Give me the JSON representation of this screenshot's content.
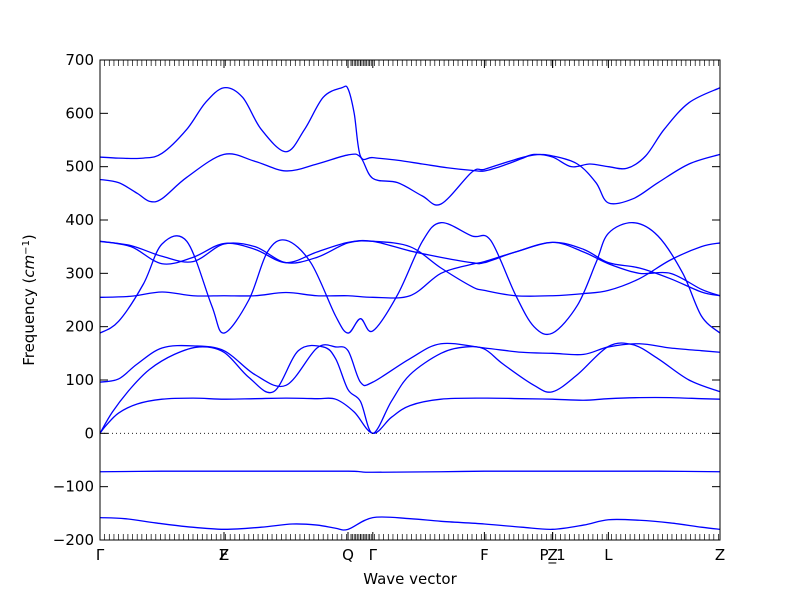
{
  "chart_data": {
    "type": "line",
    "title": "",
    "xlabel": "Wave vector",
    "ylabel": "Frequency (",
    "ylabel_math": "cm",
    "ylabel_exp": "−1",
    "ylabel_close": ")",
    "ylim": [
      -200,
      700
    ],
    "yticks": [
      -200,
      -100,
      0,
      100,
      200,
      300,
      400,
      500,
      600,
      700
    ],
    "ytick_labels": [
      "−200",
      "−100",
      "0",
      "100",
      "200",
      "300",
      "400",
      "500",
      "600",
      "700"
    ],
    "xlim": [
      0,
      1
    ],
    "special_points": [
      {
        "label": "Γ",
        "x": 0.0
      },
      {
        "label": "Z",
        "x": 0.2
      },
      {
        "label": "F",
        "x": 0.2
      },
      {
        "label": "Q",
        "x": 0.4
      },
      {
        "label": "Γ",
        "x": 0.44
      },
      {
        "label": "F",
        "x": 0.62
      },
      {
        "label": "P_1",
        "x": 0.73
      },
      {
        "label": "Z",
        "x": 0.73
      },
      {
        "label": "L",
        "x": 0.82
      },
      {
        "label": "Z",
        "x": 1.0
      }
    ],
    "zero_line": 0,
    "line_color": "#0000ff",
    "series": [
      {
        "x": [
          0,
          0.04,
          0.09,
          0.14,
          0.2,
          0.26,
          0.31,
          0.35,
          0.38,
          0.4,
          0.44,
          0.5,
          0.55,
          0.62,
          0.68,
          0.73,
          0.78,
          0.82,
          0.87,
          0.92,
          0.97,
          1
        ],
        "values": [
          -158,
          -160,
          -168,
          -175,
          -180,
          -176,
          -170,
          -172,
          -178,
          -180,
          -158,
          -160,
          -165,
          -170,
          -176,
          -180,
          -172,
          -162,
          -163,
          -168,
          -176,
          -180
        ]
      },
      {
        "x": [
          0,
          0.1,
          0.2,
          0.3,
          0.4,
          0.42,
          0.44,
          0.55,
          0.62,
          0.73,
          0.82,
          0.9,
          1
        ],
        "values": [
          -72,
          -71,
          -71,
          -71,
          -71,
          -72,
          -73,
          -72,
          -71,
          -71,
          -71,
          -71,
          -72
        ]
      },
      {
        "x": [
          0,
          0.01,
          0.03,
          0.06,
          0.1,
          0.15,
          0.2,
          0.25,
          0.3,
          0.35,
          0.38,
          0.41,
          0.44,
          0.47,
          0.5,
          0.55,
          0.62,
          0.68,
          0.73,
          0.78,
          0.82,
          0.87,
          0.92,
          0.97,
          1
        ],
        "values": [
          0,
          15,
          38,
          55,
          64,
          66,
          64,
          65,
          66,
          65,
          64,
          40,
          0,
          30,
          52,
          64,
          66,
          65,
          64,
          62,
          65,
          67,
          67,
          65,
          64
        ]
      },
      {
        "x": [
          0,
          0.02,
          0.05,
          0.08,
          0.12,
          0.16,
          0.2,
          0.24,
          0.28,
          0.32,
          0.36,
          0.38,
          0.4,
          0.42,
          0.44,
          0.47,
          0.5,
          0.55,
          0.59,
          0.62,
          0.65,
          0.7,
          0.73,
          0.77,
          0.82,
          0.86,
          0.9,
          0.95,
          1
        ],
        "values": [
          0,
          40,
          85,
          120,
          148,
          162,
          152,
          105,
          78,
          155,
          162,
          140,
          82,
          60,
          0,
          60,
          110,
          150,
          162,
          158,
          130,
          90,
          78,
          110,
          163,
          166,
          140,
          100,
          78
        ]
      },
      {
        "x": [
          0,
          0.03,
          0.06,
          0.1,
          0.15,
          0.2,
          0.25,
          0.3,
          0.35,
          0.38,
          0.4,
          0.42,
          0.44,
          0.5,
          0.55,
          0.62,
          0.68,
          0.73,
          0.78,
          0.82,
          0.87,
          0.92,
          0.97,
          1
        ],
        "values": [
          96,
          102,
          130,
          160,
          164,
          155,
          110,
          90,
          160,
          162,
          155,
          96,
          96,
          140,
          168,
          160,
          152,
          150,
          148,
          162,
          168,
          160,
          155,
          152
        ]
      },
      {
        "x": [
          0,
          0.03,
          0.07,
          0.1,
          0.14,
          0.18,
          0.2,
          0.24,
          0.27,
          0.3,
          0.34,
          0.38,
          0.4,
          0.42,
          0.44,
          0.48,
          0.52,
          0.55,
          0.6,
          0.63,
          0.67,
          0.7,
          0.73,
          0.77,
          0.8,
          0.82,
          0.86,
          0.9,
          0.94,
          0.97,
          1
        ],
        "values": [
          188,
          210,
          280,
          355,
          360,
          240,
          188,
          250,
          340,
          362,
          320,
          220,
          188,
          215,
          192,
          260,
          360,
          395,
          370,
          362,
          260,
          200,
          188,
          240,
          320,
          375,
          395,
          370,
          300,
          220,
          188
        ]
      },
      {
        "x": [
          0,
          0.05,
          0.1,
          0.15,
          0.2,
          0.25,
          0.3,
          0.35,
          0.4,
          0.44,
          0.5,
          0.55,
          0.6,
          0.62,
          0.67,
          0.73,
          0.78,
          0.82,
          0.87,
          0.92,
          0.97,
          1
        ],
        "values": [
          255,
          257,
          265,
          258,
          258,
          258,
          264,
          258,
          258,
          255,
          258,
          300,
          317,
          322,
          340,
          358,
          345,
          320,
          310,
          290,
          265,
          258
        ]
      },
      {
        "x": [
          0,
          0.05,
          0.1,
          0.15,
          0.2,
          0.25,
          0.3,
          0.35,
          0.4,
          0.44,
          0.5,
          0.55,
          0.6,
          0.62,
          0.67,
          0.73,
          0.78,
          0.82,
          0.87,
          0.92,
          0.97,
          1
        ],
        "values": [
          360,
          352,
          332,
          322,
          355,
          350,
          320,
          330,
          357,
          360,
          350,
          310,
          275,
          268,
          258,
          258,
          262,
          268,
          290,
          325,
          350,
          357
        ]
      },
      {
        "x": [
          0,
          0.05,
          0.1,
          0.15,
          0.2,
          0.25,
          0.3,
          0.35,
          0.4,
          0.44,
          0.5,
          0.55,
          0.6,
          0.62,
          0.67,
          0.73,
          0.78,
          0.82,
          0.87,
          0.92,
          0.97,
          1
        ],
        "values": [
          360,
          350,
          318,
          330,
          356,
          345,
          320,
          340,
          358,
          360,
          342,
          330,
          320,
          320,
          340,
          358,
          340,
          318,
          300,
          300,
          270,
          258
        ]
      },
      {
        "x": [
          0,
          0.03,
          0.06,
          0.08,
          0.1,
          0.14,
          0.2,
          0.25,
          0.3,
          0.35,
          0.4,
          0.42,
          0.44,
          0.48,
          0.52,
          0.55,
          0.6,
          0.62,
          0.66,
          0.7,
          0.73,
          0.77,
          0.8,
          0.82,
          0.86,
          0.9,
          0.95,
          1
        ],
        "values": [
          476,
          470,
          450,
          435,
          440,
          480,
          523,
          510,
          492,
          505,
          522,
          518,
          478,
          470,
          445,
          430,
          490,
          495,
          510,
          522,
          520,
          505,
          470,
          432,
          440,
          470,
          505,
          523
        ]
      },
      {
        "x": [
          0,
          0.03,
          0.07,
          0.1,
          0.14,
          0.17,
          0.2,
          0.23,
          0.26,
          0.3,
          0.33,
          0.36,
          0.39,
          0.4,
          0.41,
          0.42,
          0.44,
          0.48,
          0.52,
          0.56,
          0.6,
          0.62,
          0.65,
          0.68,
          0.7,
          0.73,
          0.76,
          0.79,
          0.82,
          0.85,
          0.88,
          0.91,
          0.95,
          1
        ],
        "values": [
          518,
          516,
          516,
          525,
          570,
          620,
          648,
          630,
          570,
          528,
          570,
          630,
          648,
          646,
          600,
          520,
          517,
          512,
          505,
          498,
          493,
          492,
          502,
          515,
          523,
          518,
          500,
          505,
          500,
          497,
          520,
          570,
          620,
          648
        ]
      }
    ]
  }
}
